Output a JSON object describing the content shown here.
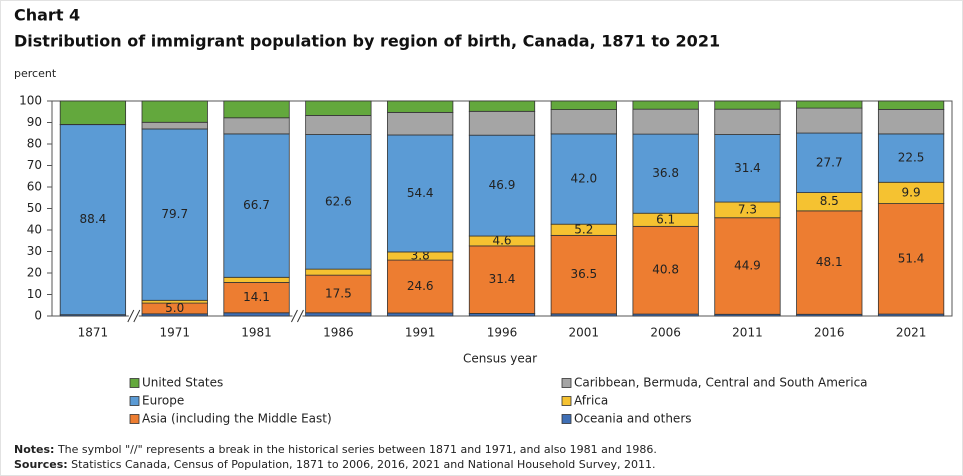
{
  "chart_data": {
    "type": "bar",
    "stacked": true,
    "header": "Chart 4",
    "title": "Distribution  of immigrant population  by region of birth, Canada, 1871 to 2021",
    "y_label": "percent",
    "x_label": "Census year",
    "categories": [
      "1871",
      "1971",
      "1981",
      "1986",
      "1991",
      "1996",
      "2001",
      "2006",
      "2011",
      "2016",
      "2021"
    ],
    "ylim": [
      0,
      100
    ],
    "yticks": [
      0,
      10,
      20,
      30,
      40,
      50,
      60,
      70,
      80,
      90,
      100
    ],
    "grid": false,
    "series": [
      {
        "name": "United States",
        "color": "#63a83d",
        "values": [
          10.9,
          9.9,
          7.8,
          6.7,
          5.3,
          4.8,
          4.0,
          3.8,
          3.8,
          3.3,
          3.9
        ]
      },
      {
        "name": "Caribbean, Bermuda, Central and South America",
        "color": "#a5a5a5",
        "values": [
          0.1,
          3.1,
          7.5,
          8.9,
          10.5,
          11.1,
          11.3,
          11.6,
          11.8,
          11.6,
          11.4
        ]
      },
      {
        "name": "Europe",
        "color": "#5b9bd5",
        "values": [
          88.4,
          79.7,
          66.7,
          62.6,
          54.4,
          46.9,
          42.0,
          36.8,
          31.4,
          27.7,
          22.5
        ],
        "value_labels": [
          "88.4",
          "79.7",
          "66.7",
          "62.6",
          "54.4",
          "46.9",
          "42.0",
          "36.8",
          "31.4",
          "27.7",
          "22.5"
        ]
      },
      {
        "name": "Africa",
        "color": "#f5c231",
        "values": [
          0.0,
          1.3,
          2.4,
          2.8,
          3.8,
          4.6,
          5.2,
          6.1,
          7.3,
          8.5,
          9.9
        ],
        "value_labels": [
          null,
          null,
          null,
          null,
          "3.8",
          "4.6",
          "5.2",
          "6.1",
          "7.3",
          "8.5",
          "9.9"
        ]
      },
      {
        "name": "Asia (including the Middle East)",
        "color": "#ed7d31",
        "values": [
          0.0,
          5.0,
          14.1,
          17.5,
          24.6,
          31.4,
          36.5,
          40.8,
          44.9,
          48.1,
          51.4
        ],
        "value_labels": [
          null,
          "5.0",
          "14.1",
          "17.5",
          "24.6",
          "31.4",
          "36.5",
          "40.8",
          "44.9",
          "48.1",
          "51.4"
        ]
      },
      {
        "name": "Oceania and others",
        "color": "#3f6fb5",
        "values": [
          0.6,
          1.0,
          1.5,
          1.5,
          1.4,
          1.2,
          1.0,
          0.9,
          0.8,
          0.8,
          0.9
        ]
      }
    ],
    "notes": {
      "label": "Notes:",
      "text": "The symbol \"//\" represents a break in the historical series between 1871 and 1971, and also 1981 and 1986."
    },
    "sources": {
      "label": "Sources:",
      "text": "Statistics Canada, Census of Population, 1871 to 2006, 2016, 2021 and National Household Survey, 2011."
    }
  }
}
